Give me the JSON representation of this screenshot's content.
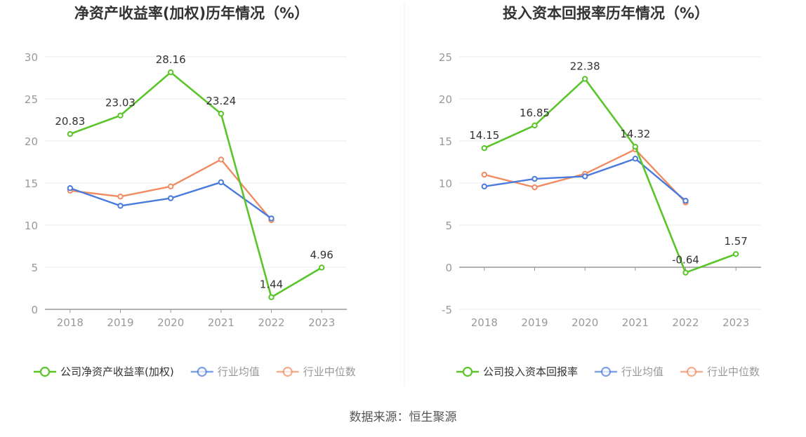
{
  "source": "数据来源：恒生聚源",
  "colors": {
    "company": "#5ac52b",
    "average": "#4a7bdc",
    "median": "#f08c62",
    "axis": "#999999",
    "grid": "#e8ebf2",
    "text": "#333333",
    "tick": "#999999"
  },
  "chart_data": [
    {
      "type": "line",
      "title": "净资产收益率(加权)历年情况（%）",
      "categories": [
        "2018",
        "2019",
        "2020",
        "2021",
        "2022",
        "2023"
      ],
      "ylim": [
        0,
        30
      ],
      "yticks": [
        0,
        5,
        10,
        15,
        20,
        25,
        30
      ],
      "grid": true,
      "legend_position": "bottom",
      "series": [
        {
          "name": "公司净资产收益率(加权)",
          "values": [
            20.83,
            23.03,
            28.16,
            23.24,
            1.44,
            4.96
          ],
          "labels": [
            "20.83",
            "23.03",
            "28.16",
            "23.24",
            "1.44",
            "4.96"
          ]
        },
        {
          "name": "行业均值",
          "values": [
            14.4,
            12.3,
            13.2,
            15.1,
            10.8,
            null
          ]
        },
        {
          "name": "行业中位数",
          "values": [
            14.1,
            13.4,
            14.6,
            17.8,
            10.6,
            null
          ]
        }
      ]
    },
    {
      "type": "line",
      "title": "投入资本回报率历年情况（%）",
      "categories": [
        "2018",
        "2019",
        "2020",
        "2021",
        "2022",
        "2023"
      ],
      "ylim": [
        -5,
        25
      ],
      "yticks": [
        -5,
        0,
        5,
        10,
        15,
        20,
        25
      ],
      "grid": true,
      "legend_position": "bottom",
      "series": [
        {
          "name": "公司投入资本回报率",
          "values": [
            14.15,
            16.85,
            22.38,
            14.32,
            -0.64,
            1.57
          ],
          "labels": [
            "14.15",
            "16.85",
            "22.38",
            "14.32",
            "-0.64",
            "1.57"
          ]
        },
        {
          "name": "行业均值",
          "values": [
            9.6,
            10.5,
            10.8,
            12.9,
            7.9,
            null
          ]
        },
        {
          "name": "行业中位数",
          "values": [
            11.0,
            9.5,
            11.1,
            14.0,
            7.7,
            null
          ]
        }
      ]
    }
  ]
}
